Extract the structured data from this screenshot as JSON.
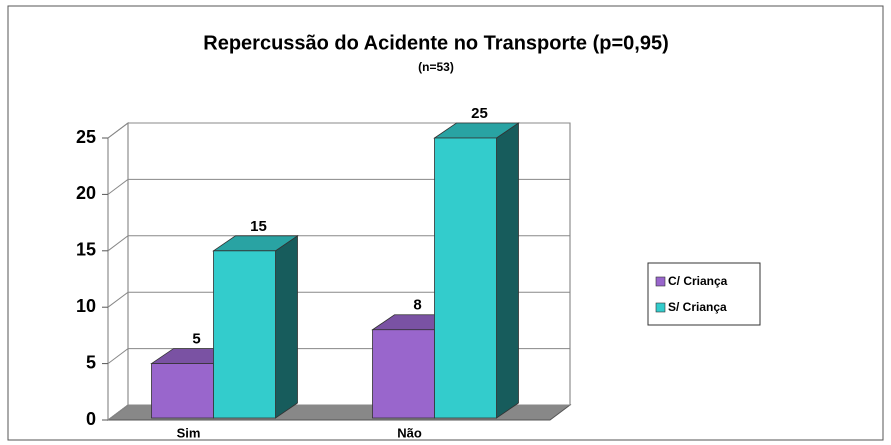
{
  "chart_data": {
    "type": "bar3d",
    "title": "Repercussão do Acidente no Transporte (p=0,95)",
    "subtitle": "(n=53)",
    "categories": [
      "Sim",
      "Não"
    ],
    "series": [
      {
        "name": "C/ Criança",
        "color": "#9966cc",
        "values": [
          5,
          8
        ]
      },
      {
        "name": "S/ Criança",
        "color": "#33cccc",
        "values": [
          15,
          25
        ]
      }
    ],
    "ylim": [
      0,
      25
    ],
    "yticks": [
      0,
      5,
      10,
      15,
      20,
      25
    ],
    "grid": true,
    "legend": "right"
  }
}
